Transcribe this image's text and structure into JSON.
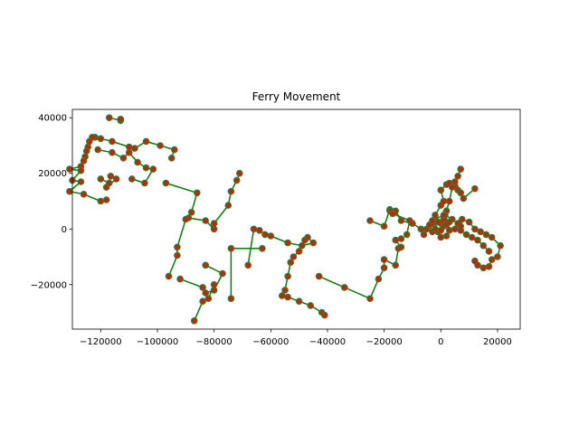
{
  "chart_data": {
    "type": "line",
    "title": "Ferry Movement",
    "xlabel": "",
    "ylabel": "",
    "xlim": [
      -130000,
      28000
    ],
    "ylim": [
      -36000,
      43000
    ],
    "xticks": [
      -120000,
      -100000,
      -80000,
      -60000,
      -40000,
      -20000,
      0,
      20000
    ],
    "xtick_labels": [
      "−120000",
      "−100000",
      "−80000",
      "−60000",
      "−40000",
      "−20000",
      "0",
      "20000"
    ],
    "yticks": [
      -20000,
      0,
      20000,
      40000
    ],
    "ytick_labels": [
      "−20000",
      "0",
      "20000",
      "40000"
    ],
    "grid": false,
    "line_color": "#008000",
    "marker_color": "#cc2200",
    "marker_edge_color": "#2e7d32",
    "segments": [
      [
        [
          -117000,
          40000
        ],
        [
          -113000,
          39000
        ],
        [
          -113000,
          39500
        ]
      ],
      [
        [
          -122000,
          33000
        ],
        [
          -120000,
          32500
        ],
        [
          -116000,
          31500
        ],
        [
          -110000,
          29500
        ],
        [
          -108000,
          29000
        ],
        [
          -104000,
          31500
        ],
        [
          -99000,
          30000
        ],
        [
          -94000,
          28500
        ],
        [
          -95000,
          25500
        ]
      ],
      [
        [
          -123000,
          33000
        ],
        [
          -124000,
          31500
        ],
        [
          -124500,
          29500
        ],
        [
          -125000,
          28000
        ],
        [
          -125500,
          26000
        ],
        [
          -126000,
          24500
        ],
        [
          -127000,
          22500
        ],
        [
          -131000,
          21500
        ],
        [
          -127000,
          21000
        ],
        [
          -130000,
          17500
        ],
        [
          -127000,
          17000
        ],
        [
          -131000,
          13500
        ],
        [
          -126000,
          12500
        ],
        [
          -120000,
          10000
        ],
        [
          -118000,
          10500
        ]
      ],
      [
        [
          -121000,
          28500
        ],
        [
          -116000,
          27500
        ],
        [
          -112000,
          25500
        ],
        [
          -110000,
          27500
        ],
        [
          -107000,
          24000
        ],
        [
          -104000,
          22000
        ],
        [
          -101500,
          21500
        ],
        [
          -104500,
          16500
        ],
        [
          -109000,
          18000
        ]
      ],
      [
        [
          -120000,
          18000
        ],
        [
          -117000,
          16500
        ],
        [
          -116500,
          19000
        ],
        [
          -114500,
          18000
        ],
        [
          -118000,
          15000
        ]
      ],
      [
        [
          -97000,
          16500
        ],
        [
          -86000,
          13000
        ],
        [
          -88000,
          6000
        ],
        [
          -89000,
          4000
        ],
        [
          -83000,
          3000
        ],
        [
          -80000,
          0
        ],
        [
          -80000,
          2000
        ],
        [
          -75000,
          8500
        ],
        [
          -74000,
          13500
        ],
        [
          -72000,
          17500
        ],
        [
          -71000,
          20000
        ]
      ],
      [
        [
          -96000,
          -17000
        ],
        [
          -93000,
          -9500
        ],
        [
          -93000,
          -6500
        ],
        [
          -90000,
          3500
        ]
      ],
      [
        [
          -92000,
          -18000
        ],
        [
          -84000,
          -21000
        ],
        [
          -83000,
          -23000
        ],
        [
          -80000,
          -22000
        ],
        [
          -77000,
          -16000
        ],
        [
          -83000,
          -13000
        ]
      ],
      [
        [
          -87000,
          -33000
        ],
        [
          -84000,
          -26000
        ],
        [
          -82000,
          -25000
        ],
        [
          -80000,
          -20000
        ]
      ],
      [
        [
          -74000,
          -25000
        ],
        [
          -74000,
          -7000
        ],
        [
          -63000,
          -7000
        ]
      ],
      [
        [
          -68000,
          -13000
        ],
        [
          -66000,
          0
        ],
        [
          -64000,
          -500
        ],
        [
          -62000,
          -2000
        ],
        [
          -60000,
          -2500
        ],
        [
          -54000,
          -5000
        ],
        [
          -49000,
          -6000
        ],
        [
          -45000,
          -5000
        ],
        [
          -47000,
          -3000
        ],
        [
          -48000,
          -4000
        ],
        [
          -50000,
          -8000
        ],
        [
          -52000,
          -10000
        ],
        [
          -53000,
          -12000
        ],
        [
          -54000,
          -17000
        ],
        [
          -55000,
          -22000
        ],
        [
          -56000,
          -24000
        ],
        [
          -54000,
          -24500
        ],
        [
          -50000,
          -26000
        ],
        [
          -46000,
          -27500
        ],
        [
          -42000,
          -30000
        ],
        [
          -41000,
          -31000
        ]
      ],
      [
        [
          -43000,
          -17000
        ],
        [
          -34000,
          -21000
        ],
        [
          -25000,
          -25000
        ],
        [
          -22000,
          -18000
        ],
        [
          -20000,
          -14000
        ],
        [
          -20000,
          -11000
        ],
        [
          -16000,
          -13000
        ],
        [
          -15000,
          -7000
        ],
        [
          -14000,
          -6500
        ],
        [
          -16000,
          -4000
        ],
        [
          -14000,
          -3500
        ]
      ],
      [
        [
          -25000,
          3000
        ],
        [
          -20000,
          1000
        ],
        [
          -18000,
          7000
        ],
        [
          -16000,
          6500
        ],
        [
          -14000,
          3000
        ],
        [
          -10000,
          2000
        ],
        [
          -7000,
          0
        ],
        [
          -6000,
          -2000
        ]
      ],
      [
        [
          -18000,
          6500
        ],
        [
          -17000,
          5500
        ],
        [
          -11000,
          3000
        ],
        [
          -12000,
          -2000
        ]
      ],
      [
        [
          -5000,
          0
        ],
        [
          -3000,
          2000
        ],
        [
          -2000,
          5000
        ],
        [
          0,
          8500
        ],
        [
          1000,
          10000
        ],
        [
          0,
          14000
        ],
        [
          2000,
          16000
        ],
        [
          3000,
          16500
        ],
        [
          5000,
          15500
        ],
        [
          6000,
          14000
        ],
        [
          7000,
          13000
        ],
        [
          8000,
          11000
        ],
        [
          12000,
          14500
        ]
      ],
      [
        [
          7000,
          21500
        ],
        [
          6000,
          19000
        ],
        [
          5000,
          17000
        ],
        [
          4000,
          15000
        ],
        [
          3000,
          10000
        ],
        [
          2000,
          6500
        ],
        [
          1500,
          5000
        ],
        [
          4000,
          3500
        ],
        [
          6000,
          2000
        ],
        [
          7000,
          1000
        ],
        [
          7500,
          3500
        ],
        [
          10000,
          2500
        ],
        [
          12000,
          0
        ],
        [
          14000,
          -1000
        ],
        [
          16000,
          -2000
        ],
        [
          18000,
          -3000
        ],
        [
          21000,
          -6000
        ],
        [
          20000,
          -10000
        ],
        [
          18000,
          -11000
        ],
        [
          17000,
          -13500
        ],
        [
          15000,
          -14000
        ],
        [
          13000,
          -13000
        ],
        [
          12000,
          -11500
        ]
      ],
      [
        [
          -2000,
          3000
        ],
        [
          0,
          2000
        ],
        [
          1000,
          1000
        ],
        [
          -1000,
          -1000
        ],
        [
          0,
          -3000
        ],
        [
          2000,
          -2500
        ],
        [
          3000,
          -500
        ],
        [
          5000,
          0
        ],
        [
          7000,
          -500
        ],
        [
          9000,
          -2000
        ],
        [
          11000,
          -3000
        ],
        [
          13000,
          -4000
        ],
        [
          15000,
          -6000
        ],
        [
          17000,
          -8000
        ]
      ],
      [
        [
          -4000,
          1500
        ],
        [
          -3000,
          -1000
        ],
        [
          -1000,
          2500
        ],
        [
          1000,
          3500
        ],
        [
          2000,
          1500
        ],
        [
          0,
          -500
        ],
        [
          -2000,
          0
        ],
        [
          -3000,
          3000
        ],
        [
          1000,
          5000
        ],
        [
          3000,
          2500
        ]
      ]
    ]
  }
}
